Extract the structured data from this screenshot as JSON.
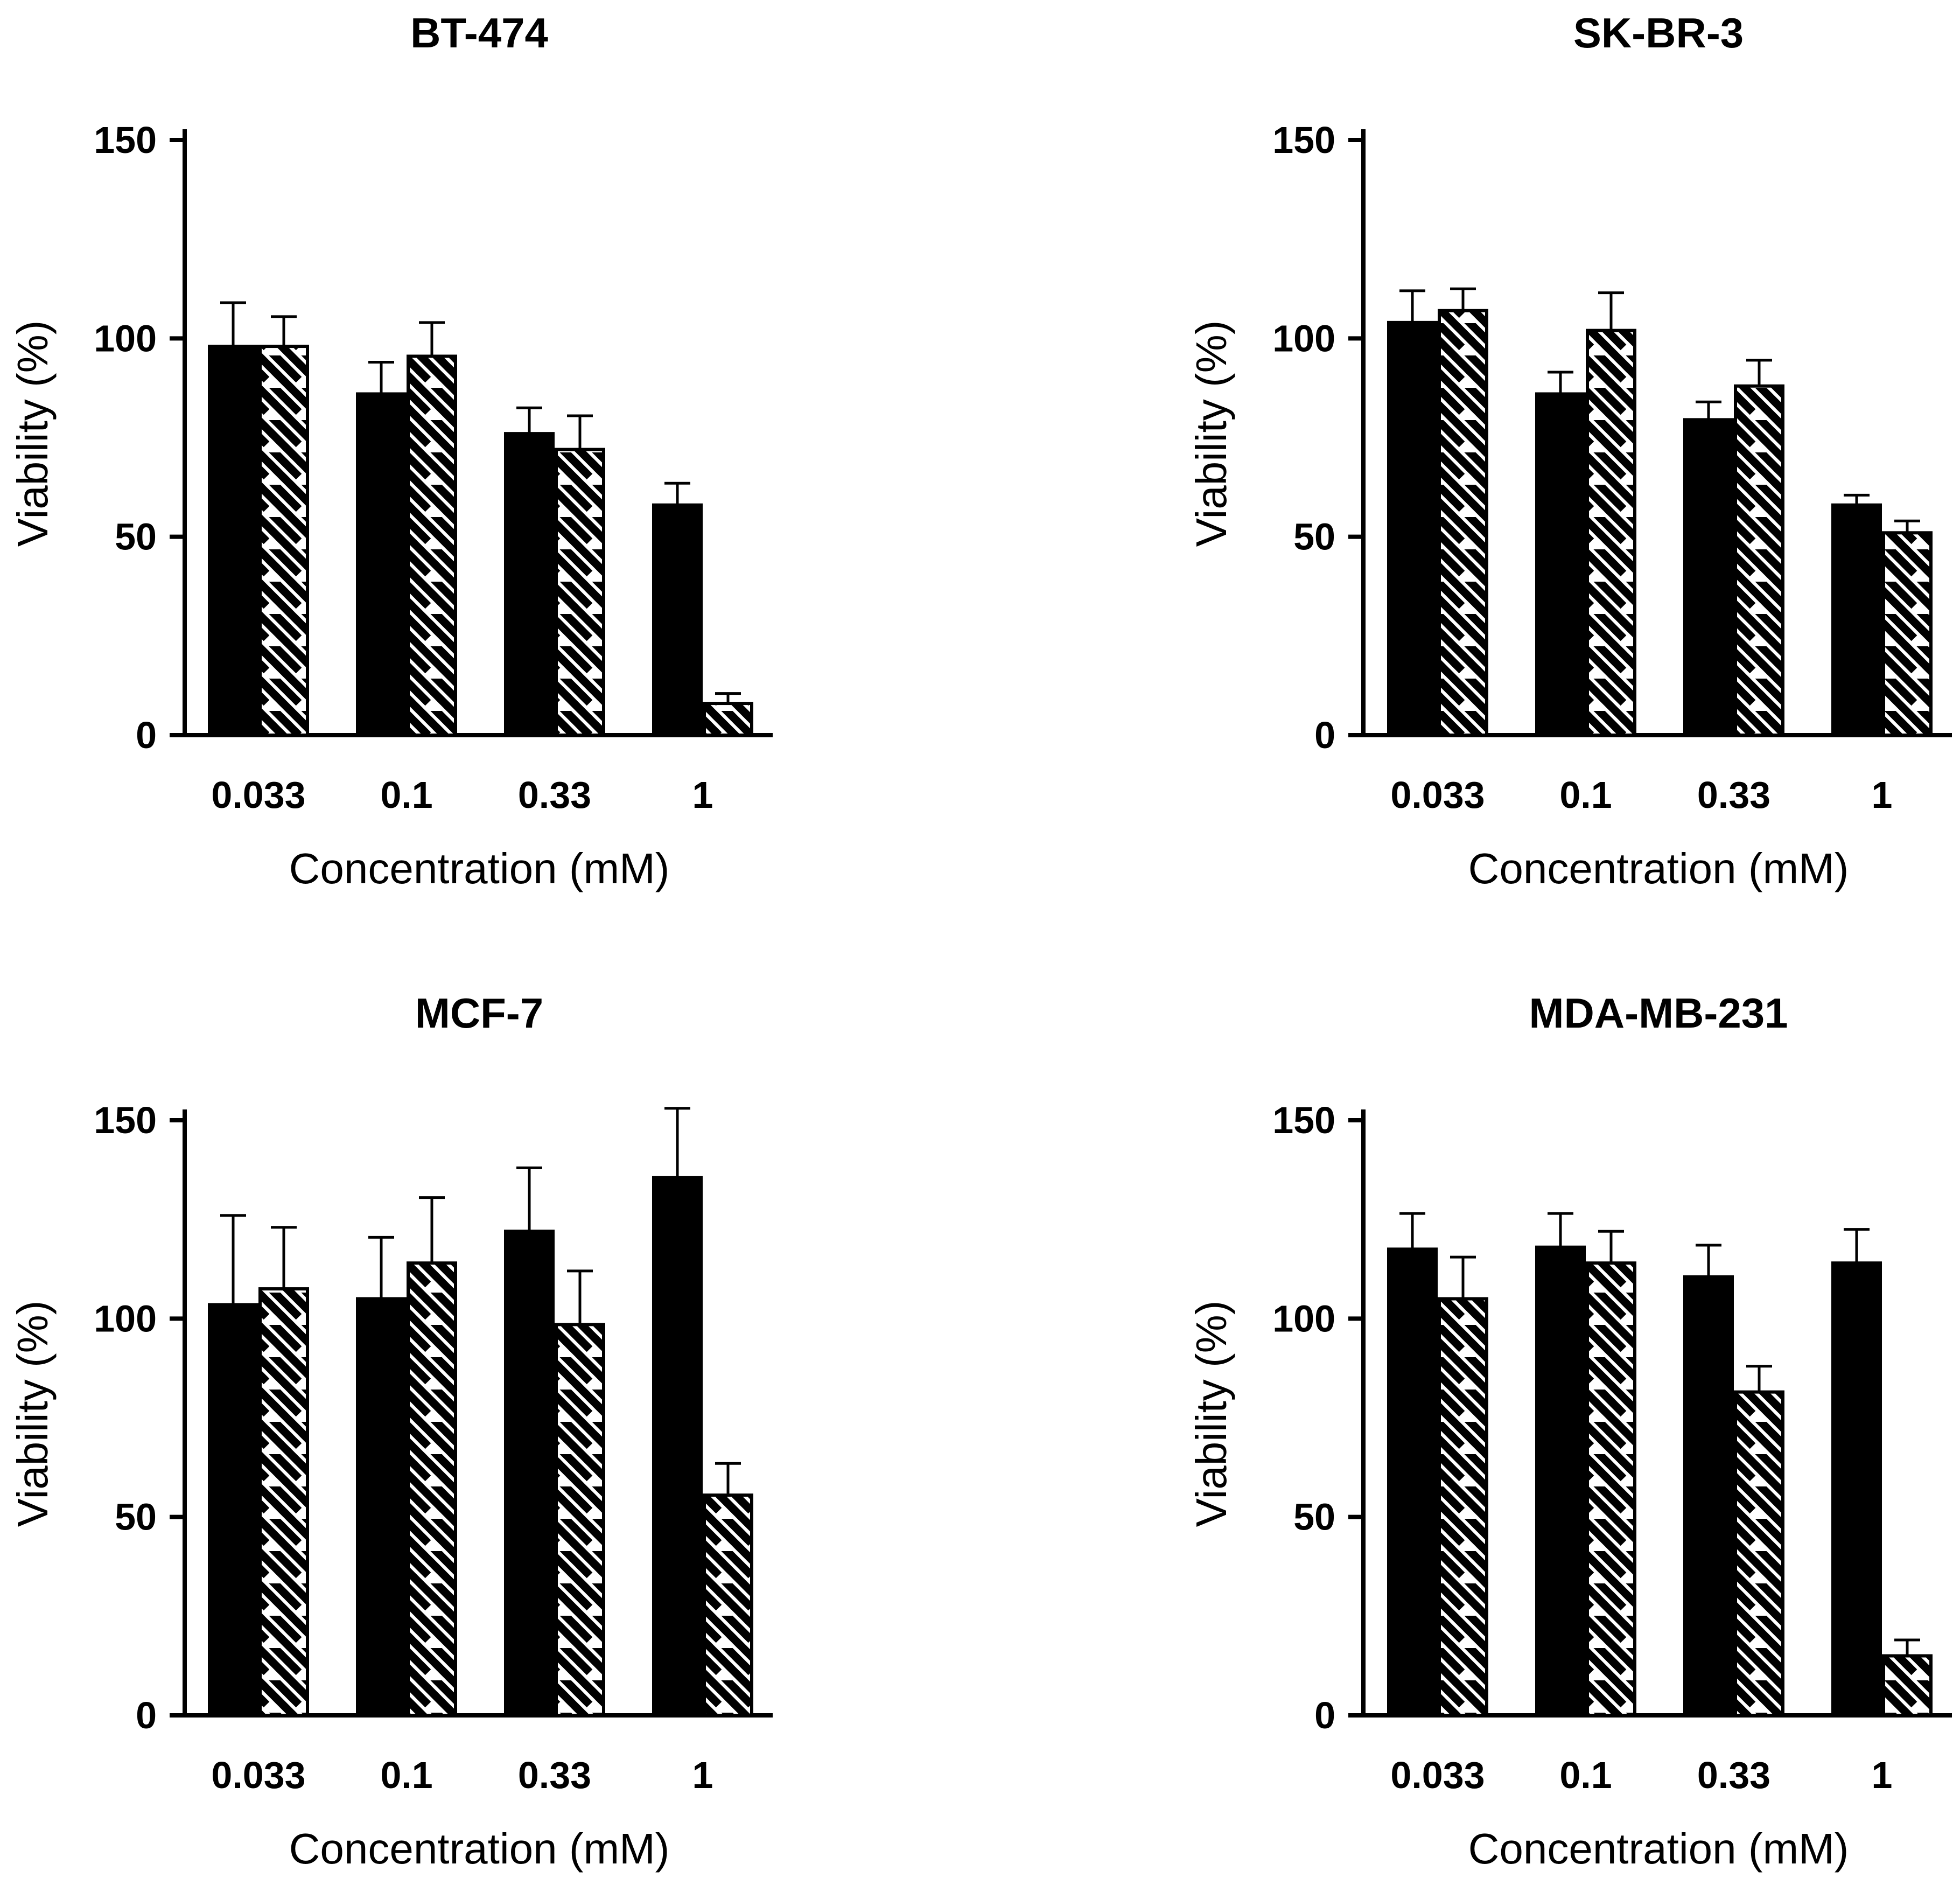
{
  "figure": {
    "colors": {
      "ink": "#000000",
      "background": "#ffffff"
    },
    "series_names": [
      "Series 1 (solid black)",
      "Series 2 (hatched)"
    ]
  },
  "chart_data": [
    {
      "type": "bar",
      "title": "BT-474",
      "xlabel": "Concentration (mM)",
      "ylabel": "Viability (%)",
      "categories": [
        "0.033",
        "0.1",
        "0.33",
        "1"
      ],
      "yticks": [
        "0",
        "50",
        "100",
        "150"
      ],
      "ylim": [
        0,
        150
      ],
      "series": [
        {
          "name": "solid",
          "values": [
            98,
            86,
            76,
            58
          ],
          "errors": [
            11,
            8,
            6.5,
            5.5
          ]
        },
        {
          "name": "hatched",
          "values": [
            98,
            95.5,
            72,
            8
          ],
          "errors": [
            7.5,
            8.5,
            8.5,
            2.5
          ]
        }
      ]
    },
    {
      "type": "bar",
      "title": "SK-BR-3",
      "xlabel": "Concentration (mM)",
      "ylabel": "Viability (%)",
      "categories": [
        "0.033",
        "0.1",
        "0.33",
        "1"
      ],
      "yticks": [
        "0",
        "50",
        "100",
        "150"
      ],
      "ylim": [
        0,
        150
      ],
      "series": [
        {
          "name": "solid",
          "values": [
            104,
            86,
            79.5,
            58
          ],
          "errors": [
            8,
            5.5,
            4.5,
            2.5
          ]
        },
        {
          "name": "hatched",
          "values": [
            107,
            102,
            88,
            51
          ],
          "errors": [
            5.5,
            9.5,
            6.5,
            3
          ]
        }
      ]
    },
    {
      "type": "bar",
      "title": "MCF-7",
      "xlabel": "Concentration (mM)",
      "ylabel": "Viability (%)",
      "categories": [
        "0.033",
        "0.1",
        "0.33",
        "1"
      ],
      "yticks": [
        "0",
        "50",
        "100",
        "150"
      ],
      "ylim": [
        0,
        150
      ],
      "series": [
        {
          "name": "solid",
          "values": [
            103.5,
            105,
            122,
            135.5
          ],
          "errors": [
            22.5,
            15.5,
            16,
            17.5
          ]
        },
        {
          "name": "hatched",
          "values": [
            107.5,
            114,
            98.5,
            55.5
          ],
          "errors": [
            15.5,
            16.5,
            13.5,
            8
          ]
        }
      ]
    },
    {
      "type": "bar",
      "title": "MDA-MB-231",
      "xlabel": "Concentration (mM)",
      "ylabel": "Viability (%)",
      "categories": [
        "0.033",
        "0.1",
        "0.33",
        "1"
      ],
      "yticks": [
        "0",
        "50",
        "100",
        "150"
      ],
      "ylim": [
        0,
        150
      ],
      "series": [
        {
          "name": "solid",
          "values": [
            117.5,
            118,
            110.5,
            114
          ],
          "errors": [
            9,
            8.5,
            8,
            8.5
          ]
        },
        {
          "name": "hatched",
          "values": [
            105,
            114,
            81.5,
            15
          ],
          "errors": [
            10.5,
            8,
            6.5,
            4
          ]
        }
      ]
    }
  ]
}
